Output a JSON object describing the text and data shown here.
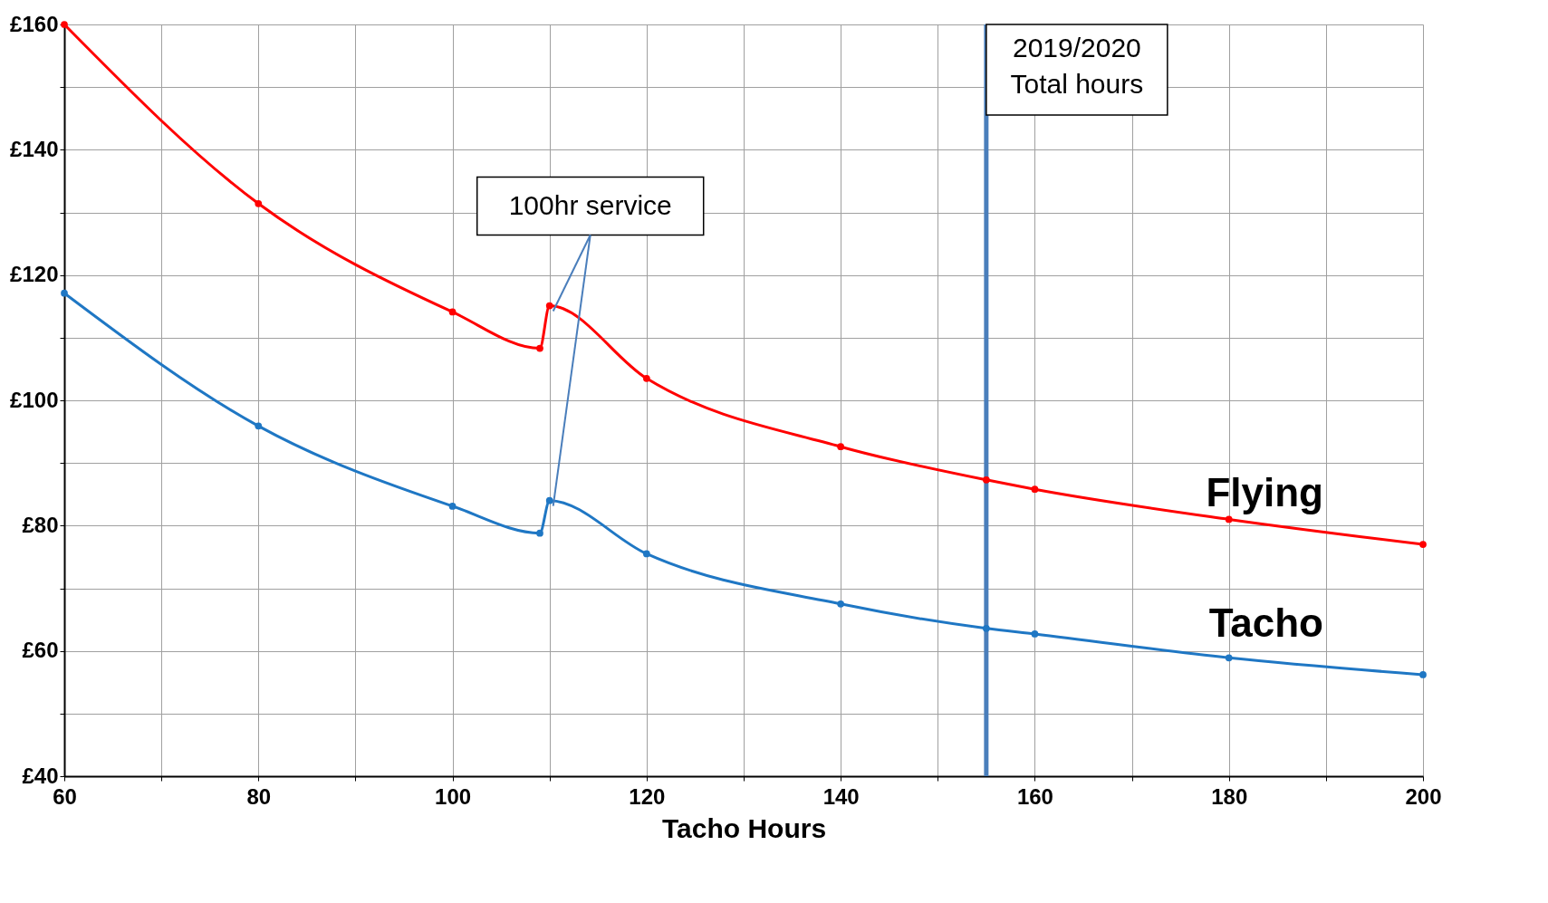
{
  "chart_data": {
    "type": "line",
    "xlabel": "Tacho Hours",
    "x": [
      60,
      80,
      100,
      109,
      110,
      120,
      140,
      155,
      160,
      180,
      200
    ],
    "series": [
      {
        "name": "Flying",
        "color": "#ff0000",
        "values": [
          160,
          131.4,
          114.1,
          108.3,
          115.1,
          103.5,
          92.6,
          87.3,
          85.8,
          81.0,
          77.0
        ]
      },
      {
        "name": "Tacho",
        "color": "#1f77c4",
        "values": [
          117.1,
          95.9,
          83.1,
          78.8,
          84.0,
          75.5,
          67.5,
          63.6,
          62.7,
          58.9,
          56.2
        ]
      }
    ],
    "xlim": [
      60,
      200
    ],
    "ylim": [
      40,
      160
    ],
    "xticks": [
      60,
      {
        "value": 70,
        "label": null
      },
      80,
      {
        "value": 90,
        "label": null
      },
      100,
      {
        "value": 110,
        "label": null
      },
      120,
      {
        "value": 130,
        "label": null
      },
      140,
      {
        "value": 150,
        "label": null
      },
      160,
      {
        "value": 170,
        "label": null
      },
      180,
      {
        "value": 190,
        "label": null
      },
      200
    ],
    "yticks": [
      {
        "value": 40,
        "label": "£40"
      },
      {
        "value": 50,
        "label": null
      },
      {
        "value": 60,
        "label": "£60"
      },
      {
        "value": 70,
        "label": null
      },
      {
        "value": 80,
        "label": "£80"
      },
      {
        "value": 90,
        "label": null
      },
      {
        "value": 100,
        "label": "£100"
      },
      {
        "value": 110,
        "label": null
      },
      {
        "value": 120,
        "label": "£120"
      },
      {
        "value": 130,
        "label": null
      },
      {
        "value": 140,
        "label": "£140"
      },
      {
        "value": 150,
        "label": null
      },
      {
        "value": 160,
        "label": "£160"
      }
    ],
    "ref_lines": [
      {
        "axis": "x",
        "value": 155,
        "label": "2019/2020\nTotal hours",
        "color": "#4a7ebb"
      }
    ],
    "annotations": [
      {
        "text": "100hr service",
        "x": 110,
        "y": 115.1
      }
    ],
    "grid": true,
    "marker": "circle",
    "line_style": "solid"
  }
}
